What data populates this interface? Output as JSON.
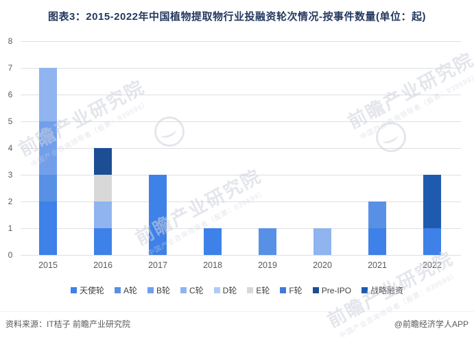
{
  "title": "图表3：2015-2022年中国植物提取物行业投融资轮次情况-按事件数量(单位：起)",
  "chart_data": {
    "type": "bar",
    "stacked": true,
    "title": "图表3：2015-2022年中国植物提取物行业投融资轮次情况-按事件数量(单位：起)",
    "unit_label": "起",
    "categories": [
      "2015",
      "2016",
      "2017",
      "2018",
      "2019",
      "2020",
      "2021",
      "2022"
    ],
    "series": [
      {
        "name": "天使轮",
        "color": "#3E81E8",
        "values": [
          2,
          1,
          3,
          1,
          0,
          0,
          1,
          1
        ]
      },
      {
        "name": "A轮",
        "color": "#5890E5",
        "values": [
          1,
          0,
          0,
          0,
          1,
          0,
          1,
          0
        ]
      },
      {
        "name": "B轮",
        "color": "#729FEB",
        "values": [
          2,
          0,
          0,
          0,
          0,
          0,
          0,
          0
        ]
      },
      {
        "name": "C轮",
        "color": "#8FB4EF",
        "values": [
          2,
          1,
          0,
          0,
          0,
          1,
          0,
          0
        ]
      },
      {
        "name": "D轮",
        "color": "#AECBF4",
        "values": [
          0,
          0,
          0,
          0,
          0,
          0,
          0,
          0
        ]
      },
      {
        "name": "E轮",
        "color": "#D8D8D8",
        "values": [
          0,
          1,
          0,
          0,
          0,
          0,
          0,
          0
        ]
      },
      {
        "name": "F轮",
        "color": "#4379D9",
        "values": [
          0,
          0,
          0,
          0,
          0,
          0,
          0,
          0
        ]
      },
      {
        "name": "Pre-IPO",
        "color": "#1C4E93",
        "values": [
          0,
          1,
          0,
          0,
          0,
          0,
          0,
          0
        ]
      },
      {
        "name": "战略融资",
        "color": "#1E5BAE",
        "values": [
          0,
          0,
          0,
          0,
          0,
          0,
          0,
          2
        ]
      }
    ],
    "stack_totals": [
      7,
      4,
      3,
      1,
      1,
      1,
      2,
      3
    ],
    "ylim": [
      0,
      8
    ],
    "ytick_step": 1,
    "grid": true,
    "legend_position": "bottom"
  },
  "footer": {
    "source": "资料来源：IT桔子 前瞻产业研究院",
    "brand": "@前瞻经济学人APP"
  },
  "watermark": {
    "line1": "前瞻产业研究院",
    "line2": "中国产业咨询领导者（股票：839599）"
  },
  "colors": {
    "gridline": "#DDDFE1",
    "axis_text": "#595959",
    "title_text": "#24395F",
    "legend_text": "#404040"
  }
}
